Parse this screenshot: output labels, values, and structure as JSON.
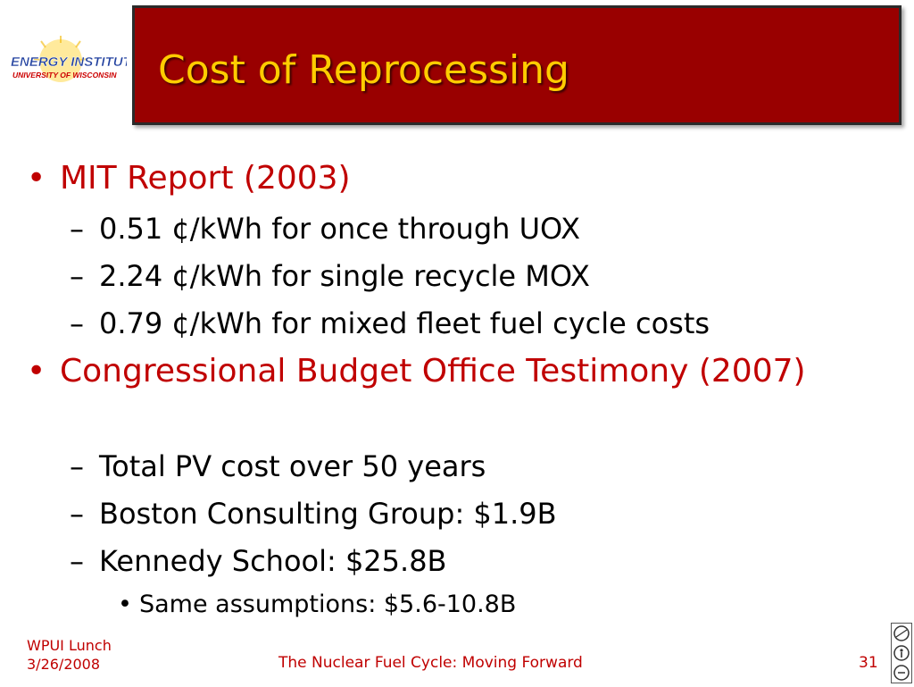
{
  "logo": {
    "line1": "ENERGY INSTITUTE",
    "line2": "UNIVERSITY OF WISCONSIN"
  },
  "slide": {
    "title": "Cost of Reprocessing",
    "bullets": [
      {
        "text": "MIT Report (2003)",
        "sub": [
          {
            "text": "0.51 ¢/kWh for once through UOX"
          },
          {
            "text": "2.24 ¢/kWh for single recycle MOX"
          },
          {
            "text": "0.79 ¢/kWh for mixed fleet fuel cycle costs"
          }
        ]
      },
      {
        "text": "Congressional Budget Office Testimony (2007)",
        "sub": [
          {
            "text": "Total PV cost over 50 years"
          },
          {
            "text": "Boston Consulting Group: $1.9B"
          },
          {
            "text": "Kennedy School: $25.8B",
            "sub": [
              {
                "text": "Same assumptions: $5.6-10.8B"
              }
            ]
          }
        ]
      }
    ]
  },
  "footer": {
    "event": "WPUI Lunch",
    "date": "3/26/2008",
    "center": "The Nuclear Fuel Cycle: Moving Forward",
    "page": "31"
  },
  "symbols": {
    "bullet": "•",
    "dash": "–"
  },
  "colors": {
    "title_bar": "#990000",
    "title_text": "#ffcc00",
    "bullet_text": "#c00000",
    "footer_text": "#c00000"
  },
  "icons": {
    "logo": "energy-institute-logo",
    "license": "creative-commons-icon"
  }
}
